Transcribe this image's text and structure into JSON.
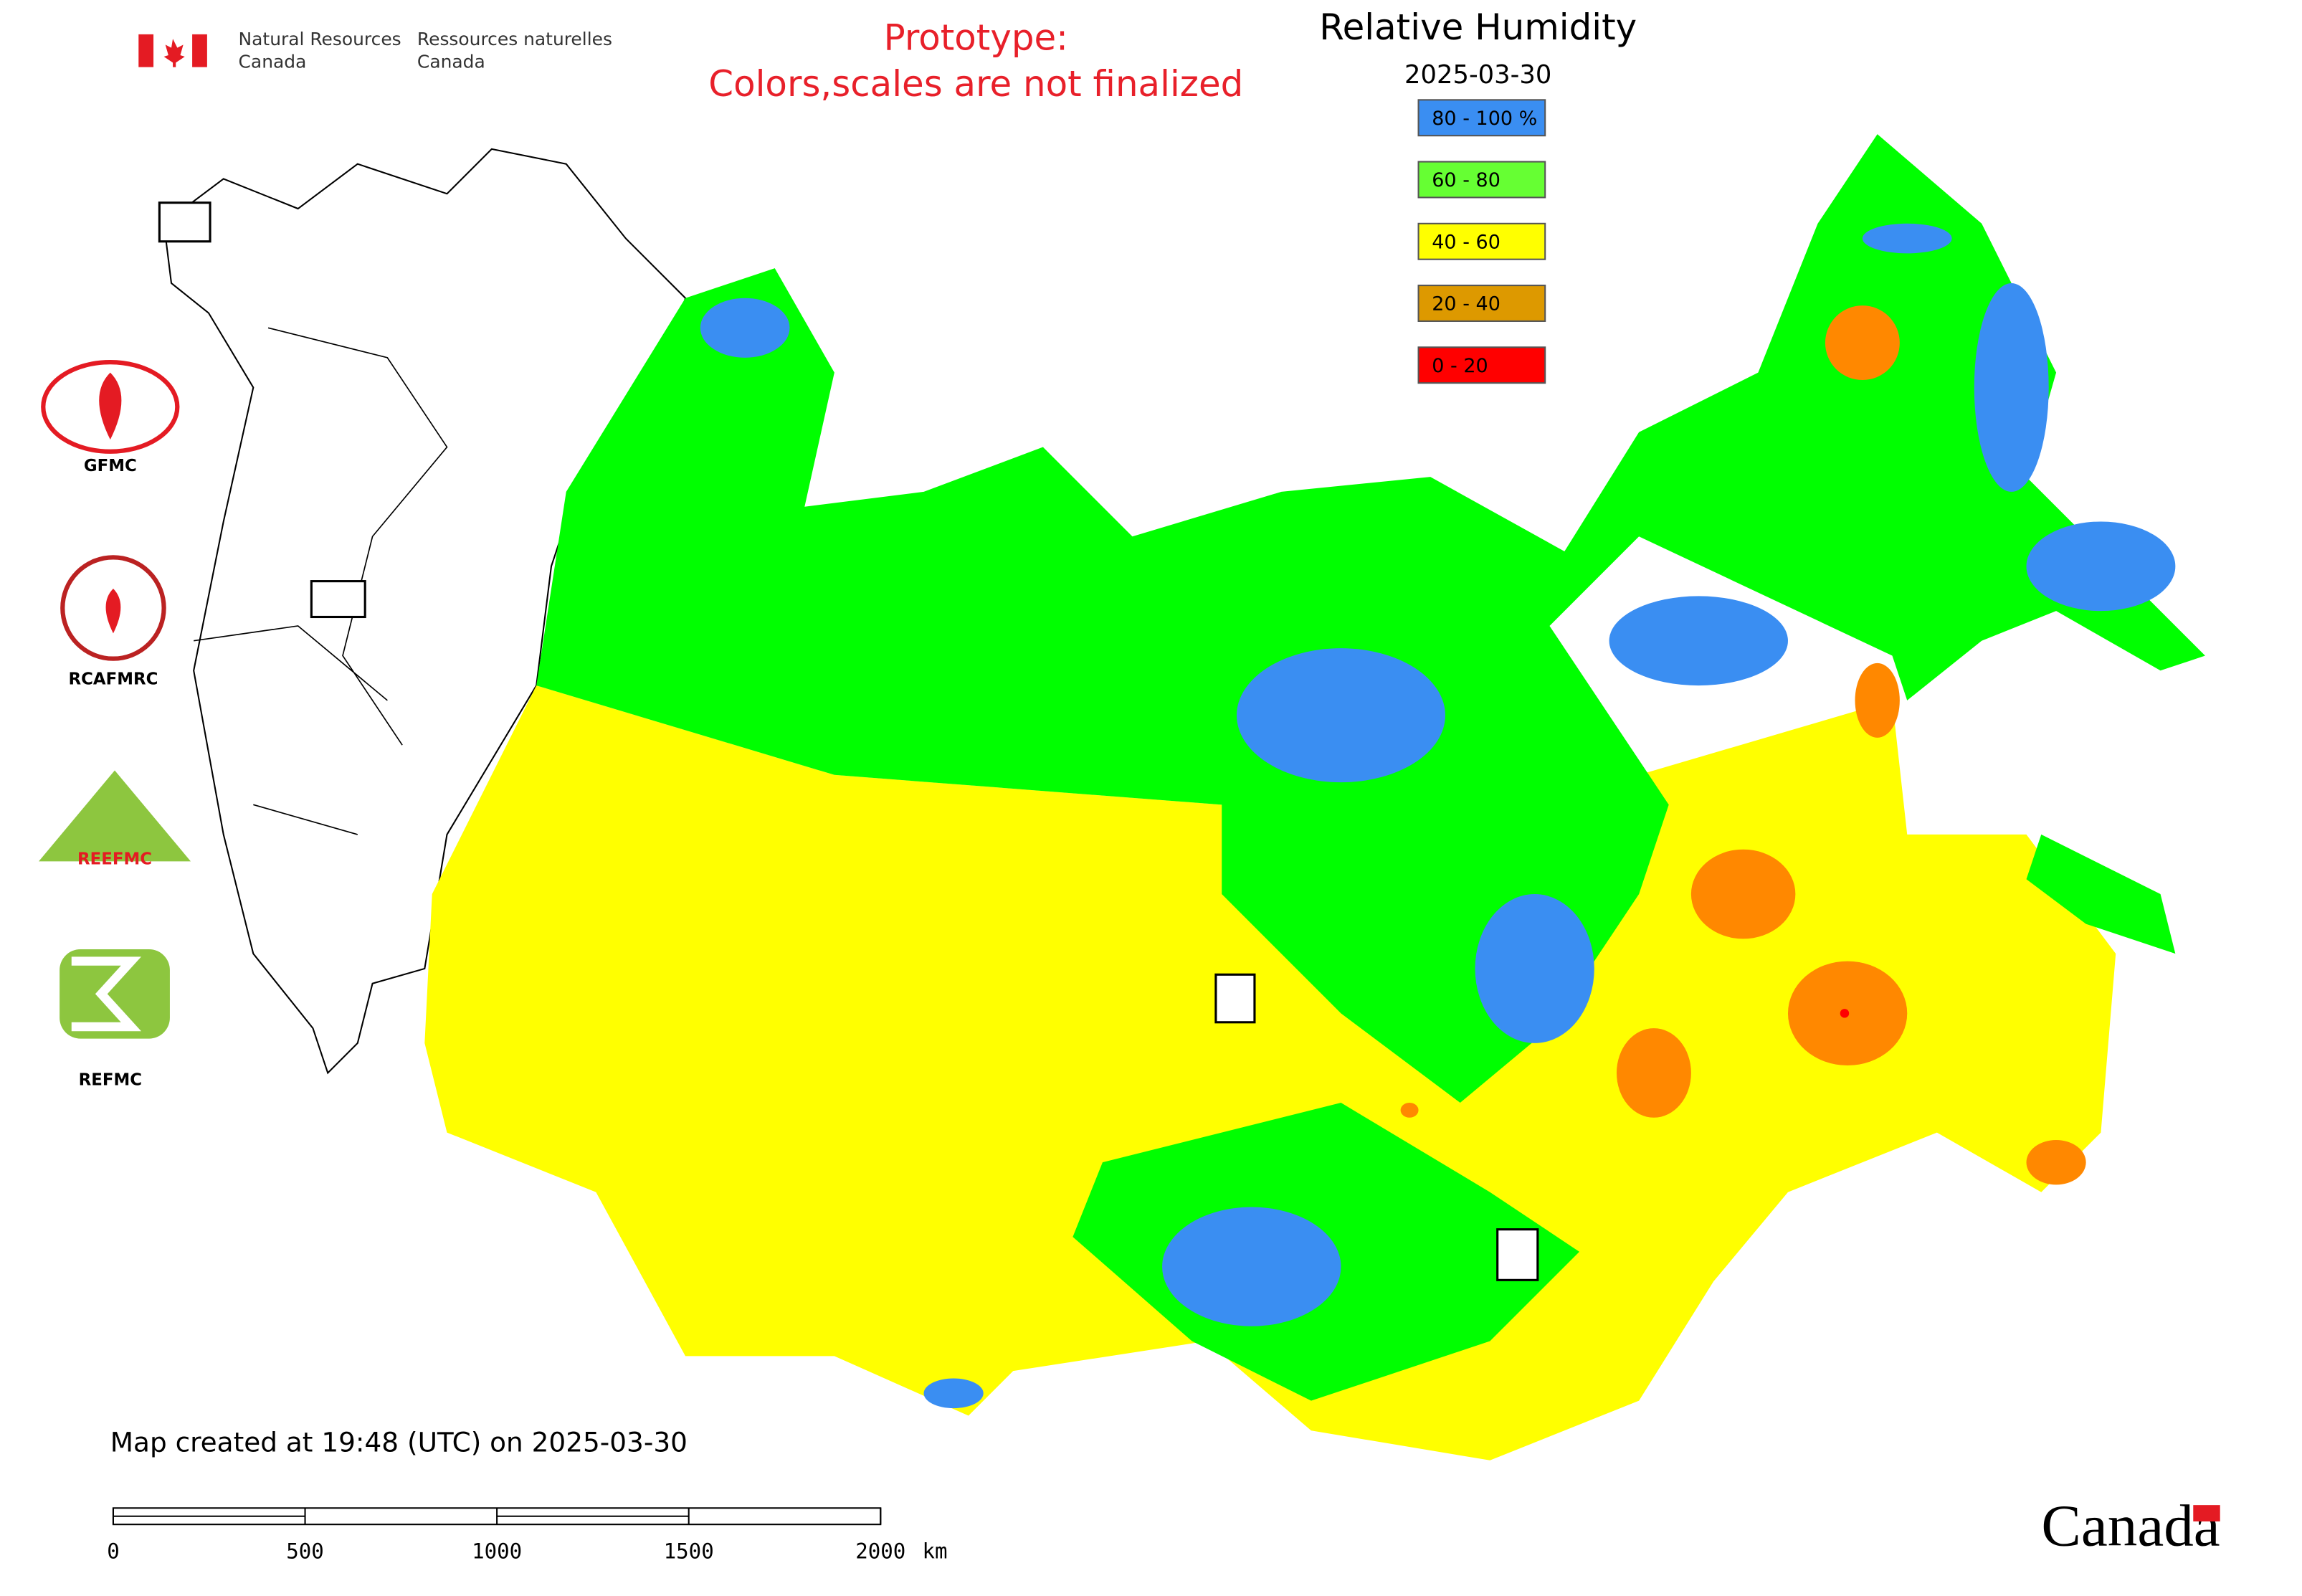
{
  "header": {
    "agency_en": [
      "Natural Resources",
      "Canada"
    ],
    "agency_fr": [
      "Ressources naturelles",
      "Canada"
    ],
    "notice": [
      "Prototype:",
      "Colors,scales are not finalized"
    ],
    "title": "Relative Humidity",
    "date": "2025-03-30"
  },
  "legend": {
    "entries": [
      {
        "label": "80 - 100 %",
        "color": "#3a8ef2"
      },
      {
        "label": "60 - 80",
        "color": "#66ff33"
      },
      {
        "label": "40 - 60",
        "color": "#ffff00"
      },
      {
        "label": "20 - 40",
        "color": "#dd9900"
      },
      {
        "label": "0 - 20",
        "color": "#ff0000"
      }
    ]
  },
  "logos": [
    "GFMC",
    "RCAFMRC",
    "REEFMC",
    "REFMC"
  ],
  "footer": {
    "created": "Map created at 19:48 (UTC) on 2025-03-30",
    "wordmark": "Canada"
  },
  "scale_bar": {
    "ticks": [
      0,
      500,
      1000,
      1500,
      2000
    ],
    "unit": "km"
  }
}
